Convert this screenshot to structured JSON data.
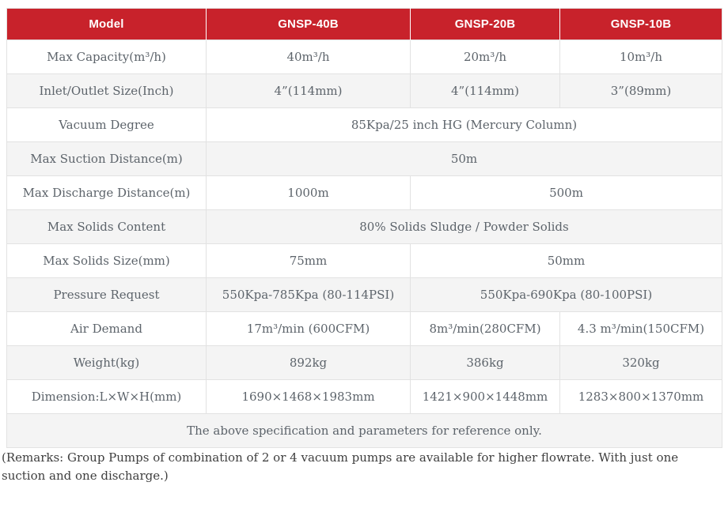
{
  "theme": {
    "header_bg": "#c8222b",
    "header_text_color": "#ffffff",
    "body_text_color": "#5d646b",
    "alt_row_bg": "#f4f4f4",
    "border_color": "#e2e2e2",
    "remarks_text_color": "#3e3e3e"
  },
  "spec_table": {
    "header": {
      "model_label": "Model",
      "columns": [
        "GNSP-40B",
        "GNSP-20B",
        "GNSP-10B"
      ]
    },
    "rows": [
      {
        "label": "Max Capacity(m³/h)",
        "values": [
          "40m³/h",
          "20m³/h",
          "10m³/h"
        ]
      },
      {
        "label": "Inlet/Outlet Size(Inch)",
        "values": [
          "4”(114mm)",
          "4”(114mm)",
          "3”(89mm)"
        ]
      },
      {
        "label": "Vacuum Degree",
        "values": [
          "85Kpa/25 inch HG (Mercury Column)"
        ]
      },
      {
        "label": "Max Suction Distance(m)",
        "values": [
          "50m"
        ]
      },
      {
        "label": "Max Discharge Distance(m)",
        "values": [
          "1000m",
          "500m"
        ]
      },
      {
        "label": "Max Solids Content",
        "values": [
          "80% Solids Sludge / Powder Solids"
        ]
      },
      {
        "label": "Max Solids Size(mm)",
        "values": [
          "75mm",
          "50mm"
        ]
      },
      {
        "label": "Pressure Request",
        "values": [
          "550Kpa-785Kpa (80-114PSI)",
          "550Kpa-690Kpa (80-100PSI)"
        ]
      },
      {
        "label": "Air Demand",
        "values": [
          "17m³/min (600CFM)",
          "8m³/min(280CFM)",
          "4.3 m³/min(150CFM)"
        ]
      },
      {
        "label": "Weight(kg)",
        "values": [
          "892kg",
          "386kg",
          "320kg"
        ]
      },
      {
        "label": "Dimension:L×W×H(mm)",
        "values": [
          "1690×1468×1983mm",
          "1421×900×1448mm",
          "1283×800×1370mm"
        ]
      }
    ],
    "footer_note": "The above specification and parameters for reference only."
  },
  "remarks": "(Remarks: Group Pumps of combination of 2 or 4 vacuum pumps are available for higher flowrate. With just one suction and one discharge.)"
}
